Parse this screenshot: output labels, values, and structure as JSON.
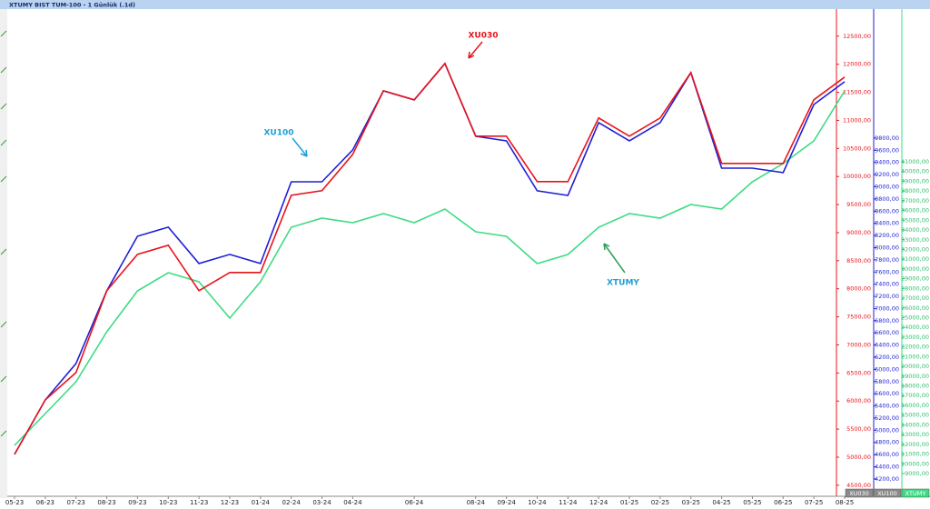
{
  "chart_data": {
    "type": "line",
    "title": "XTUMY BIST TUM-100 - 1 Günlük (.1d)",
    "categories": [
      "05-23",
      "06-23",
      "07-23",
      "08-23",
      "09-23",
      "10-23",
      "11-23",
      "12-23",
      "01-24",
      "02-24",
      "03-24",
      "04-24",
      null,
      "06-24",
      null,
      "08-24",
      "09-24",
      "10-24",
      "11-24",
      "12-24",
      "01-25",
      "02-25",
      "03-25",
      "04-25",
      "05-25",
      "06-25",
      "07-25",
      "08-25"
    ],
    "series": [
      {
        "name": "XTUMY",
        "color": "#3ddc84",
        "axis": "y3",
        "values": [
          11890,
          15156,
          18421,
          23553,
          27751,
          29617,
          28684,
          24952,
          28684,
          34282,
          35215,
          34749,
          35682,
          34749,
          36148,
          33816,
          33349,
          30550,
          31483,
          34282,
          35682,
          35215,
          36615,
          36148,
          38947,
          40813,
          43146,
          48277
        ]
      },
      {
        "name": "XU100",
        "color": "#1f1fd6",
        "axis": "y2",
        "values": [
          4604,
          5500,
          6097,
          7292,
          8188,
          8337,
          7740,
          7889,
          7740,
          9083,
          9083,
          9606,
          10576,
          10427,
          11024,
          9830,
          9755,
          8934,
          8859,
          10054,
          9755,
          10054,
          10875,
          9307,
          9307,
          9233,
          10352,
          10726
        ]
      },
      {
        "name": "XU030",
        "color": "#e8141c",
        "axis": "y",
        "values": [
          5050,
          6022,
          6508,
          7966,
          8614,
          8776,
          7966,
          8290,
          8290,
          9666,
          9747,
          10395,
          11528,
          11366,
          12014,
          10719,
          10719,
          9909,
          9909,
          11043,
          10719,
          11043,
          11852,
          10233,
          10233,
          10233,
          11366,
          11771
        ]
      }
    ],
    "ylim": [
      4320,
      12950
    ],
    "yticks": [
      {
        "value": 4500,
        "label": "4500,00"
      },
      {
        "value": 5000,
        "label": "5000,00"
      },
      {
        "value": 5500,
        "label": "5500,00"
      },
      {
        "value": 6000,
        "label": "6000,00"
      },
      {
        "value": 6500,
        "label": "6500,00"
      },
      {
        "value": 7000,
        "label": "7000,00"
      },
      {
        "value": 7500,
        "label": "7500,00"
      },
      {
        "value": 8000,
        "label": "8000,00"
      },
      {
        "value": 8500,
        "label": "8500,00"
      },
      {
        "value": 9000,
        "label": "9000,00"
      },
      {
        "value": 9500,
        "label": "9500,00"
      },
      {
        "value": 10000,
        "label": "10000,00"
      },
      {
        "value": 10500,
        "label": "10500,00"
      },
      {
        "value": 11000,
        "label": "11000,00"
      },
      {
        "value": 11500,
        "label": "11500,00"
      },
      {
        "value": 12000,
        "label": "12000,00"
      },
      {
        "value": 12500,
        "label": "12500,00"
      }
    ],
    "y2lim": [
      3930,
      11890
    ],
    "y2ticks": [
      {
        "value": 4200,
        "label": "4200,00"
      },
      {
        "value": 4400,
        "label": "4400,00"
      },
      {
        "value": 4600,
        "label": "4600,00"
      },
      {
        "value": 4800,
        "label": "4800,00"
      },
      {
        "value": 5000,
        "label": "5000,00"
      },
      {
        "value": 5200,
        "label": "5200,00"
      },
      {
        "value": 5400,
        "label": "5400,00"
      },
      {
        "value": 5600,
        "label": "5600,00"
      },
      {
        "value": 5800,
        "label": "5800,00"
      },
      {
        "value": 6000,
        "label": "6000,00"
      },
      {
        "value": 6200,
        "label": "6200,00"
      },
      {
        "value": 6400,
        "label": "6400,00"
      },
      {
        "value": 6600,
        "label": "6600,00"
      },
      {
        "value": 6800,
        "label": "6800,00"
      },
      {
        "value": 7000,
        "label": "7000,00"
      },
      {
        "value": 7200,
        "label": "7200,00"
      },
      {
        "value": 7400,
        "label": "7400,00"
      },
      {
        "value": 7600,
        "label": "7600,00"
      },
      {
        "value": 7800,
        "label": "7800,00"
      },
      {
        "value": 8000,
        "label": "8000,00"
      },
      {
        "value": 8200,
        "label": "8200,00"
      },
      {
        "value": 8400,
        "label": "8400,00"
      },
      {
        "value": 8600,
        "label": "8600,00"
      },
      {
        "value": 8800,
        "label": "8800,00"
      },
      {
        "value": 9000,
        "label": "9000,00"
      },
      {
        "value": 9200,
        "label": "9200,00"
      },
      {
        "value": 9400,
        "label": "9400,00"
      },
      {
        "value": 9600,
        "label": "9600,00"
      },
      {
        "value": 9800,
        "label": "9800,00"
      }
    ],
    "y3lim": [
      6760,
      56490
    ],
    "y3ticks": [
      {
        "value": 9000,
        "label": "9000,00"
      },
      {
        "value": 10000,
        "label": "10000,00"
      },
      {
        "value": 11000,
        "label": "11000,00"
      },
      {
        "value": 12000,
        "label": "12000,00"
      },
      {
        "value": 13000,
        "label": "13000,00"
      },
      {
        "value": 14000,
        "label": "14000,00"
      },
      {
        "value": 15000,
        "label": "15000,00"
      },
      {
        "value": 16000,
        "label": "16000,00"
      },
      {
        "value": 17000,
        "label": "17000,00"
      },
      {
        "value": 18000,
        "label": "18000,00"
      },
      {
        "value": 19000,
        "label": "19000,00"
      },
      {
        "value": 20000,
        "label": "20000,00"
      },
      {
        "value": 21000,
        "label": "21000,00"
      },
      {
        "value": 22000,
        "label": "22000,00"
      },
      {
        "value": 23000,
        "label": "23000,00"
      },
      {
        "value": 24000,
        "label": "24000,00"
      },
      {
        "value": 25000,
        "label": "25000,00"
      },
      {
        "value": 26000,
        "label": "26000,00"
      },
      {
        "value": 27000,
        "label": "27000,00"
      },
      {
        "value": 28000,
        "label": "28000,00"
      },
      {
        "value": 29000,
        "label": "29000,00"
      },
      {
        "value": 30000,
        "label": "30000,00"
      },
      {
        "value": 31000,
        "label": "31000,00"
      },
      {
        "value": 32000,
        "label": "32000,00"
      },
      {
        "value": 33000,
        "label": "33000,00"
      },
      {
        "value": 34000,
        "label": "34000,00"
      },
      {
        "value": 35000,
        "label": "35000,00"
      },
      {
        "value": 36000,
        "label": "36000,00"
      },
      {
        "value": 37000,
        "label": "37000,00"
      },
      {
        "value": 38000,
        "label": "38000,00"
      },
      {
        "value": 39000,
        "label": "39000,00"
      },
      {
        "value": 40000,
        "label": "40000,00"
      },
      {
        "value": 41000,
        "label": "41000,00"
      }
    ],
    "annotations": [
      {
        "text": "XU030",
        "color": "#e8141c"
      },
      {
        "text": "XU100",
        "color": "#1ea0d8"
      },
      {
        "text": "XTUMY",
        "color": "#1ea0d8"
      }
    ]
  }
}
